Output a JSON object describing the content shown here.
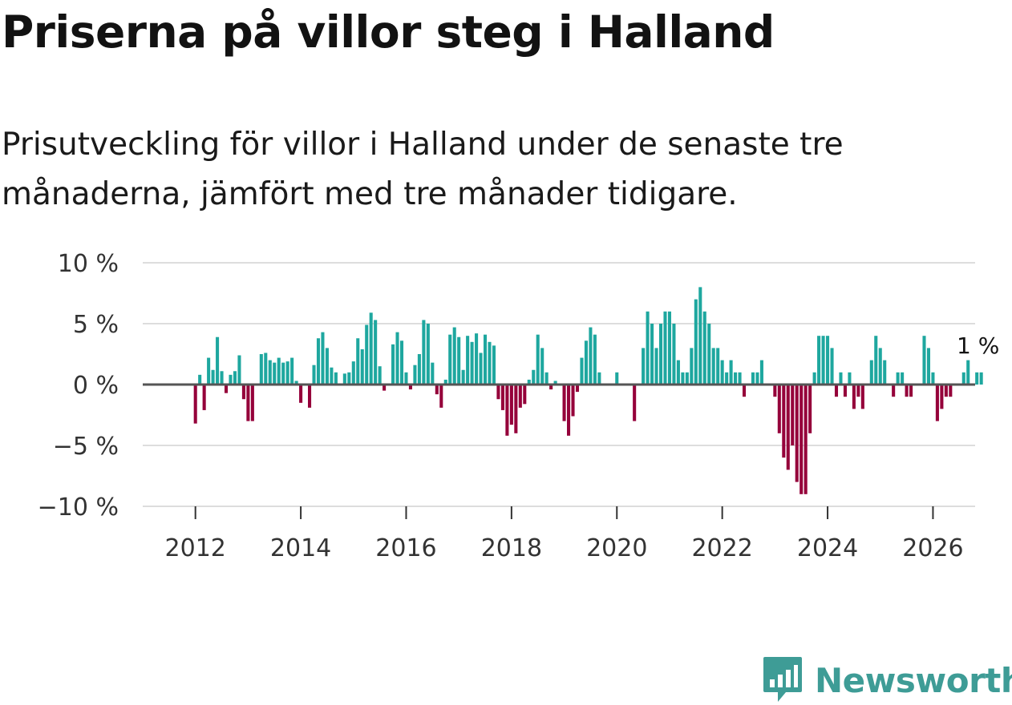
{
  "title": "Priserna på villor steg i Halland",
  "subtitle": "Prisutveckling för villor i Halland under de senaste tre månaderna, jämfört med tre månader tidigare.",
  "brand": {
    "name": "Newsworthy",
    "color": "#3e9c96"
  },
  "colors": {
    "positive": "#1ea79f",
    "negative": "#95003a",
    "grid": "#dddddd",
    "baseline": "#555555"
  },
  "chart_data": {
    "type": "bar",
    "title": "Priserna på villor steg i Halland",
    "xlabel": "",
    "ylabel": "",
    "unit": "%",
    "ylim": [
      -10,
      10
    ],
    "y_ticks": [
      {
        "value": 10,
        "label": "10 %"
      },
      {
        "value": 5,
        "label": "5 %"
      },
      {
        "value": 0,
        "label": "0 %"
      },
      {
        "value": -5,
        "label": "−5 %"
      },
      {
        "value": -10,
        "label": "−10 %"
      }
    ],
    "xlim": [
      2011.0,
      2026.8
    ],
    "x_ticks": [
      2012,
      2014,
      2016,
      2018,
      2020,
      2022,
      2024,
      2026
    ],
    "start": {
      "year": 2012,
      "month": 1
    },
    "values": [
      -3.2,
      0.8,
      -2.1,
      2.2,
      1.2,
      3.9,
      1.1,
      -0.7,
      0.8,
      1.1,
      2.4,
      -1.2,
      -3.0,
      -3.0,
      0,
      2.5,
      2.6,
      2.0,
      1.8,
      2.2,
      1.8,
      1.9,
      2.2,
      0.3,
      -1.5,
      0,
      -1.9,
      1.6,
      3.8,
      4.3,
      3.0,
      1.4,
      1.0,
      0,
      0.9,
      1.0,
      1.9,
      3.8,
      2.9,
      4.9,
      5.9,
      5.3,
      1.5,
      -0.5,
      0,
      3.3,
      4.3,
      3.6,
      1.0,
      -0.4,
      1.6,
      2.5,
      5.3,
      5.0,
      1.8,
      -0.8,
      -1.9,
      0.4,
      4.1,
      4.7,
      3.9,
      1.2,
      4.0,
      3.5,
      4.2,
      2.6,
      4.1,
      3.5,
      3.2,
      -1.2,
      -2.1,
      -4.2,
      -3.3,
      -4.0,
      -1.9,
      -1.6,
      0.4,
      1.2,
      4.1,
      3.0,
      1.0,
      -0.4,
      0.3,
      0,
      -3.0,
      -4.2,
      -2.6,
      -0.6,
      2.2,
      3.6,
      4.7,
      4.1,
      1.0,
      0,
      0,
      0,
      1.0,
      0,
      0,
      0,
      -3.0,
      0,
      3.0,
      6.0,
      5.0,
      3.0,
      5.0,
      6.0,
      6.0,
      5.0,
      2.0,
      1.0,
      1.0,
      3.0,
      7.0,
      8.0,
      6.0,
      5.0,
      3.0,
      3.0,
      2.0,
      1.0,
      2.0,
      1.0,
      1.0,
      -1.0,
      0,
      1.0,
      1.0,
      2.0,
      0,
      0,
      -1.0,
      -4.0,
      -6.0,
      -7.0,
      -5.0,
      -8.0,
      -9.0,
      -9.0,
      -4.0,
      1.0,
      4.0,
      4.0,
      4.0,
      3.0,
      -1.0,
      1.0,
      -1.0,
      1.0,
      -2.0,
      -1.0,
      -2.0,
      0,
      2.0,
      4.0,
      3.0,
      2.0,
      0,
      -1.0,
      1.0,
      1.0,
      -1.0,
      -1.0,
      0,
      0,
      4.0,
      3.0,
      1.0,
      -3.0,
      -2.0,
      -1.0,
      -1.0,
      0,
      0,
      1.0,
      2.0,
      0,
      1.0,
      1.0
    ],
    "annotation": {
      "text": "1 %",
      "value": 1,
      "position": "last-bar"
    }
  }
}
